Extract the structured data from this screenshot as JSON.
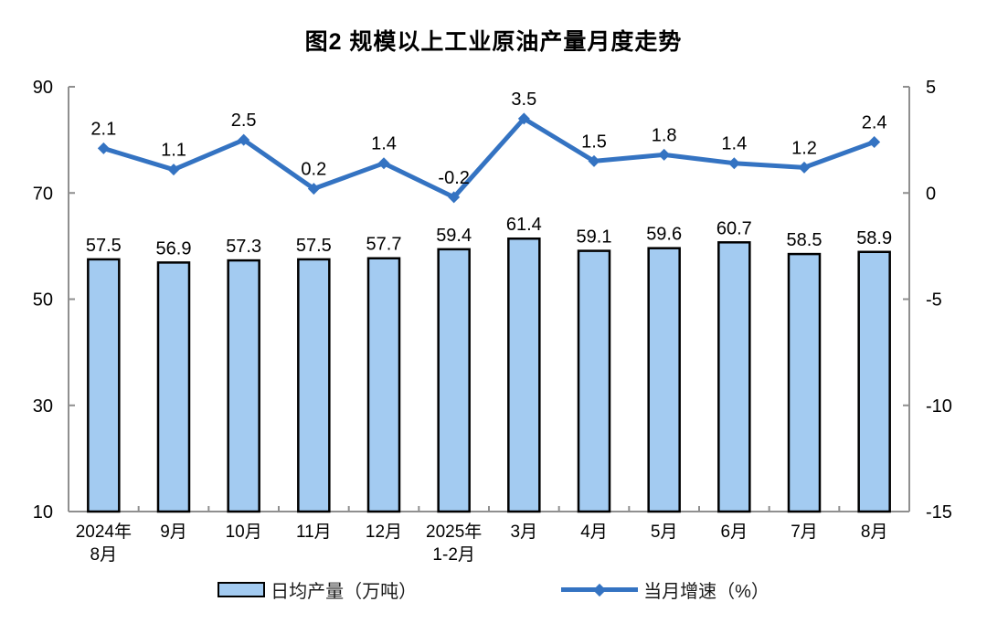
{
  "title": "图2 规模以上工业原油产量月度走势",
  "legend": {
    "bar_label": "日均产量（万吨）",
    "line_label": "当月增速（%）"
  },
  "colors": {
    "bar_fill": "#A3CBF1",
    "bar_stroke": "#000000",
    "line": "#3473C2",
    "axis": "#8F8F8F",
    "text": "#000000"
  },
  "chart_data": {
    "type": "bar+line combo",
    "title": "图2 规模以上工业原油产量月度走势",
    "categories": [
      [
        "2024年",
        "8月"
      ],
      [
        "9月"
      ],
      [
        "10月"
      ],
      [
        "11月"
      ],
      [
        "12月"
      ],
      [
        "2025年",
        "1-2月"
      ],
      [
        "3月"
      ],
      [
        "4月"
      ],
      [
        "5月"
      ],
      [
        "6月"
      ],
      [
        "7月"
      ],
      [
        "8月"
      ]
    ],
    "series": [
      {
        "name": "日均产量（万吨）",
        "type": "bar",
        "axis": "left",
        "values": [
          57.5,
          56.9,
          57.3,
          57.5,
          57.7,
          59.4,
          61.4,
          59.1,
          59.6,
          60.7,
          58.5,
          58.9
        ]
      },
      {
        "name": "当月增速（%）",
        "type": "line",
        "axis": "right",
        "values": [
          2.1,
          1.1,
          2.5,
          0.2,
          1.4,
          -0.2,
          3.5,
          1.5,
          1.8,
          1.4,
          1.2,
          2.4
        ]
      }
    ],
    "left_axis": {
      "min": 10,
      "max": 90,
      "ticks": [
        90,
        70,
        50,
        30,
        10
      ]
    },
    "right_axis": {
      "min": -15,
      "max": 5,
      "ticks": [
        5,
        0,
        -5,
        -10,
        -15
      ]
    },
    "grid": false,
    "legend_position": "bottom",
    "data_labels": true
  }
}
